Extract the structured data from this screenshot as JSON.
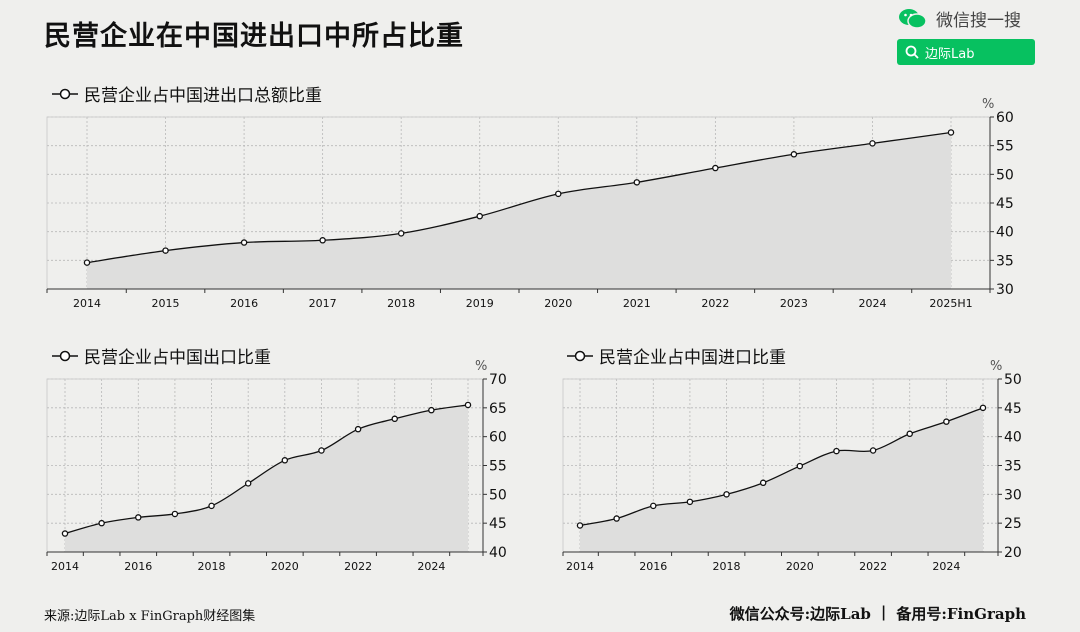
{
  "header": {
    "title": "民营企业在中国进出口中所占比重",
    "brand": "微信搜一搜",
    "search_label": "边际Lab"
  },
  "footer": {
    "source": "来源:边际Lab x FinGraph财经图集",
    "account": "微信公众号:边际Lab",
    "separator": "|",
    "record": "备用号:FinGraph"
  },
  "chart_data": [
    {
      "type": "area",
      "title": "民营企业占中国进出口总额比重",
      "unit": "%",
      "x": [
        "2014",
        "2015",
        "2016",
        "2017",
        "2018",
        "2019",
        "2020",
        "2021",
        "2022",
        "2023",
        "2024",
        "2025H1"
      ],
      "values": [
        34.6,
        36.7,
        38.1,
        38.5,
        39.7,
        42.7,
        46.6,
        48.6,
        51.1,
        53.5,
        55.4,
        57.3
      ],
      "ylim": [
        30,
        60
      ],
      "yticks": [
        30,
        35,
        40,
        45,
        50,
        55,
        60
      ],
      "xticks": [
        "2014",
        "2015",
        "2016",
        "2017",
        "2018",
        "2019",
        "2020",
        "2021",
        "2022",
        "2023",
        "2024",
        "2025H1"
      ],
      "grid": true
    },
    {
      "type": "area",
      "title": "民营企业占中国出口比重",
      "unit": "%",
      "x": [
        "2014",
        "2015",
        "2016",
        "2017",
        "2018",
        "2019",
        "2020",
        "2021",
        "2022",
        "2023",
        "2024",
        "2025"
      ],
      "values": [
        43.2,
        45.0,
        46.0,
        46.6,
        48.0,
        51.9,
        55.9,
        57.6,
        61.3,
        63.1,
        64.6,
        65.5
      ],
      "ylim": [
        40,
        70
      ],
      "yticks": [
        40,
        45,
        50,
        55,
        60,
        65,
        70
      ],
      "xticks": [
        "2014",
        "2016",
        "2018",
        "2020",
        "2022",
        "2024"
      ],
      "grid": true
    },
    {
      "type": "area",
      "title": "民营企业占中国进口比重",
      "unit": "%",
      "x": [
        "2014",
        "2015",
        "2016",
        "2017",
        "2018",
        "2019",
        "2020",
        "2021",
        "2022",
        "2023",
        "2024",
        "2025"
      ],
      "values": [
        24.6,
        25.8,
        28.0,
        28.7,
        30.0,
        32.0,
        34.9,
        37.5,
        37.6,
        40.5,
        42.6,
        45.0
      ],
      "ylim": [
        20,
        50
      ],
      "yticks": [
        20,
        25,
        30,
        35,
        40,
        45,
        50
      ],
      "xticks": [
        "2014",
        "2016",
        "2018",
        "2020",
        "2022",
        "2024"
      ],
      "grid": true
    }
  ],
  "colors": {
    "background": "#efefed",
    "area_fill": "#dededd",
    "line": "#111111",
    "grid": "#b8b8b8",
    "accent": "#07c160"
  }
}
